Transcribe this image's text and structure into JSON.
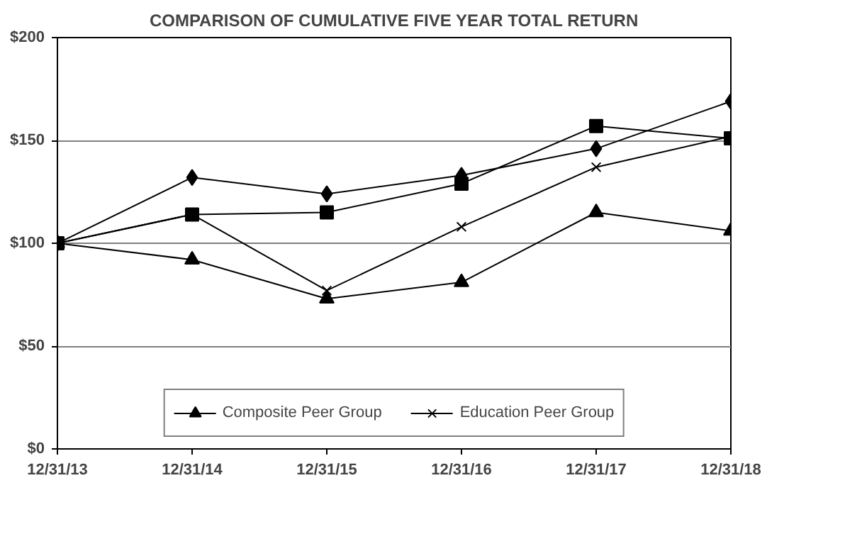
{
  "chart_data": {
    "type": "line",
    "title": "COMPARISON OF CUMULATIVE FIVE YEAR TOTAL RETURN",
    "categories": [
      "12/31/13",
      "12/31/14",
      "12/31/15",
      "12/31/16",
      "12/31/17",
      "12/31/18"
    ],
    "series": [
      {
        "color": "#000000",
        "marker": "diamond",
        "values": [
          100,
          132,
          124,
          133,
          146,
          169
        ]
      },
      {
        "color": "#000000",
        "marker": "square",
        "values": [
          100,
          114,
          115,
          129,
          157,
          151
        ]
      },
      {
        "name": "Composite Peer Group",
        "color": "#000000",
        "marker": "triangle",
        "values": [
          100,
          92,
          73,
          81,
          115,
          106
        ]
      },
      {
        "name": "Education Peer Group",
        "color": "#000000",
        "marker": "cross",
        "values": [
          100,
          114,
          77,
          108,
          137,
          152
        ]
      }
    ],
    "ylim": [
      0,
      200
    ],
    "yticks": [
      {
        "value": 0,
        "label": "$0"
      },
      {
        "value": 50,
        "label": "$50"
      },
      {
        "value": 100,
        "label": "$100"
      },
      {
        "value": 150,
        "label": "$150"
      },
      {
        "value": 200,
        "label": "$200"
      }
    ],
    "grid": "y",
    "legend": "bottom",
    "line_style": "solid"
  }
}
